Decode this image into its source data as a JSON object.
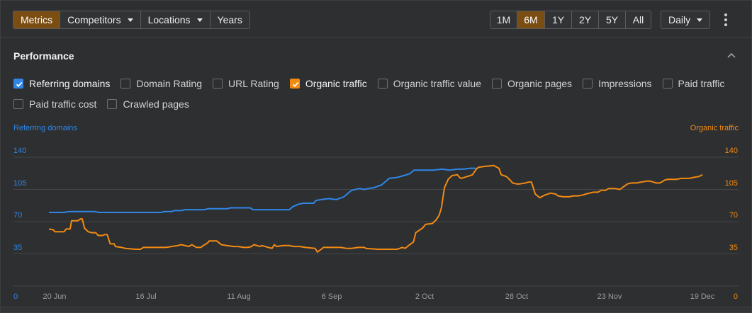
{
  "toolbar": {
    "view_tabs": [
      {
        "label": "Metrics",
        "active": true,
        "dropdown": false
      },
      {
        "label": "Competitors",
        "active": false,
        "dropdown": true
      },
      {
        "label": "Locations",
        "active": false,
        "dropdown": true
      },
      {
        "label": "Years",
        "active": false,
        "dropdown": false
      }
    ],
    "ranges": [
      {
        "label": "1M",
        "active": false
      },
      {
        "label": "6M",
        "active": true
      },
      {
        "label": "1Y",
        "active": false
      },
      {
        "label": "2Y",
        "active": false
      },
      {
        "label": "5Y",
        "active": false
      },
      {
        "label": "All",
        "active": false
      }
    ],
    "interval": "Daily"
  },
  "section": {
    "title": "Performance"
  },
  "metrics": [
    {
      "label": "Referring domains",
      "checked": true,
      "color": "#2f86e6"
    },
    {
      "label": "Domain Rating",
      "checked": false
    },
    {
      "label": "URL Rating",
      "checked": false
    },
    {
      "label": "Organic traffic",
      "checked": true,
      "color": "#f28a12"
    },
    {
      "label": "Organic traffic value",
      "checked": false
    },
    {
      "label": "Organic pages",
      "checked": false
    },
    {
      "label": "Impressions",
      "checked": false
    },
    {
      "label": "Paid traffic",
      "checked": false
    },
    {
      "label": "Paid traffic cost",
      "checked": false
    },
    {
      "label": "Crawled pages",
      "checked": false
    }
  ],
  "colors": {
    "accent": "#7a4d12",
    "blue": "#2f86e6",
    "orange": "#f28a12"
  },
  "chart_data": {
    "type": "line",
    "xlabel_ticks": [
      "20 Jun",
      "16 Jul",
      "11 Aug",
      "6 Sep",
      "2 Oct",
      "28 Oct",
      "23 Nov",
      "19 Dec"
    ],
    "left_axis": {
      "title": "Referring domains",
      "ticks": [
        "0",
        "35",
        "70",
        "105",
        "140"
      ],
      "ylim": [
        0,
        160
      ]
    },
    "right_axis": {
      "title": "Organic traffic",
      "ticks": [
        "0",
        "35",
        "70",
        "105",
        "140"
      ],
      "ylim": [
        0,
        160
      ]
    },
    "grid": true,
    "series": [
      {
        "name": "Referring domains",
        "axis": "left",
        "color": "#2f86e6",
        "points": [
          [
            0,
            80
          ],
          [
            20,
            80
          ],
          [
            27,
            81
          ],
          [
            60,
            81
          ],
          [
            66,
            80
          ],
          [
            148,
            80
          ],
          [
            153,
            81
          ],
          [
            162,
            81
          ],
          [
            166,
            82
          ],
          [
            175,
            82
          ],
          [
            180,
            83
          ],
          [
            206,
            83
          ],
          [
            210,
            84
          ],
          [
            236,
            84
          ],
          [
            240,
            85
          ],
          [
            266,
            85
          ],
          [
            270,
            83
          ],
          [
            318,
            83
          ],
          [
            322,
            86
          ],
          [
            330,
            89
          ],
          [
            336,
            90
          ],
          [
            350,
            90
          ],
          [
            353,
            93
          ],
          [
            360,
            94
          ],
          [
            370,
            95
          ],
          [
            380,
            94
          ],
          [
            390,
            97
          ],
          [
            400,
            104
          ],
          [
            411,
            106
          ],
          [
            416,
            105
          ],
          [
            430,
            107
          ],
          [
            440,
            110
          ],
          [
            450,
            117
          ],
          [
            460,
            118
          ],
          [
            469,
            120
          ],
          [
            477,
            122
          ],
          [
            483,
            126
          ],
          [
            500,
            126
          ],
          [
            508,
            126
          ],
          [
            520,
            127
          ],
          [
            530,
            126
          ],
          [
            540,
            127
          ],
          [
            548,
            127
          ],
          [
            557,
            128
          ],
          [
            565,
            128
          ]
        ]
      },
      {
        "name": "Organic traffic",
        "axis": "right",
        "color": "#f28a12",
        "points": [
          [
            0,
            62
          ],
          [
            6,
            61
          ],
          [
            8,
            59
          ],
          [
            20,
            59
          ],
          [
            23,
            62
          ],
          [
            28,
            62
          ],
          [
            30,
            71
          ],
          [
            38,
            71
          ],
          [
            42,
            73
          ],
          [
            44,
            73
          ],
          [
            47,
            63
          ],
          [
            52,
            59
          ],
          [
            57,
            58
          ],
          [
            62,
            58
          ],
          [
            65,
            55
          ],
          [
            71,
            55
          ],
          [
            74,
            56
          ],
          [
            77,
            56
          ],
          [
            81,
            46
          ],
          [
            86,
            46
          ],
          [
            88,
            43
          ],
          [
            96,
            42
          ],
          [
            101,
            41
          ],
          [
            115,
            40
          ],
          [
            121,
            40
          ],
          [
            125,
            42
          ],
          [
            130,
            42
          ],
          [
            150,
            42
          ],
          [
            155,
            42
          ],
          [
            170,
            44
          ],
          [
            175,
            45
          ],
          [
            180,
            44
          ],
          [
            185,
            43
          ],
          [
            189,
            45
          ],
          [
            195,
            42
          ],
          [
            201,
            42
          ],
          [
            204,
            44
          ],
          [
            210,
            47
          ],
          [
            212,
            49
          ],
          [
            222,
            49
          ],
          [
            228,
            45
          ],
          [
            235,
            44
          ],
          [
            244,
            43
          ],
          [
            250,
            43
          ],
          [
            258,
            42
          ],
          [
            263,
            42
          ],
          [
            268,
            43
          ],
          [
            271,
            45
          ],
          [
            279,
            43
          ],
          [
            282,
            44
          ],
          [
            290,
            42
          ],
          [
            295,
            41
          ],
          [
            298,
            45
          ],
          [
            301,
            43
          ],
          [
            310,
            44
          ],
          [
            318,
            44
          ],
          [
            324,
            43
          ],
          [
            332,
            43
          ],
          [
            339,
            42
          ],
          [
            352,
            41
          ],
          [
            355,
            37
          ],
          [
            360,
            40
          ],
          [
            363,
            42
          ],
          [
            368,
            42
          ],
          [
            386,
            42
          ],
          [
            393,
            41
          ],
          [
            400,
            41
          ],
          [
            409,
            42
          ],
          [
            413,
            42
          ],
          [
            417,
            42
          ],
          [
            419,
            41
          ],
          [
            435,
            40
          ],
          [
            453,
            40
          ],
          [
            460,
            40
          ],
          [
            464,
            41
          ],
          [
            467,
            42
          ],
          [
            471,
            41
          ],
          [
            474,
            43
          ],
          [
            482,
            48
          ],
          [
            485,
            58
          ],
          [
            494,
            63
          ],
          [
            498,
            67
          ],
          [
            507,
            68
          ],
          [
            512,
            72
          ],
          [
            516,
            77
          ],
          [
            519,
            85
          ],
          [
            523,
            107
          ],
          [
            528,
            116
          ],
          [
            533,
            120
          ],
          [
            540,
            121
          ],
          [
            543,
            118
          ],
          [
            545,
            117
          ],
          [
            553,
            119
          ],
          [
            557,
            120
          ],
          [
            560,
            121
          ],
          [
            565,
            127
          ],
          [
            568,
            129
          ],
          [
            576,
            130
          ],
          [
            588,
            131
          ],
          [
            595,
            128
          ],
          [
            598,
            121
          ],
          [
            605,
            119
          ],
          [
            610,
            115
          ],
          [
            613,
            112
          ],
          [
            618,
            111
          ],
          [
            623,
            111
          ],
          [
            630,
            112
          ],
          [
            634,
            113
          ],
          [
            638,
            113
          ],
          [
            643,
            100
          ],
          [
            649,
            96
          ],
          [
            656,
            99
          ],
          [
            660,
            100
          ],
          [
            663,
            101
          ],
          [
            670,
            100
          ],
          [
            673,
            98
          ],
          [
            680,
            97
          ],
          [
            688,
            97
          ],
          [
            693,
            98
          ],
          [
            700,
            98
          ],
          [
            706,
            99
          ],
          [
            710,
            100
          ],
          [
            715,
            101
          ],
          [
            720,
            102
          ],
          [
            726,
            102
          ],
          [
            730,
            104
          ],
          [
            736,
            104
          ],
          [
            740,
            106
          ],
          [
            748,
            106
          ],
          [
            755,
            105
          ],
          [
            760,
            108
          ],
          [
            765,
            111
          ],
          [
            770,
            112
          ],
          [
            777,
            112
          ],
          [
            783,
            113
          ],
          [
            790,
            114
          ],
          [
            795,
            114
          ],
          [
            799,
            113
          ],
          [
            803,
            112
          ],
          [
            808,
            112
          ],
          [
            814,
            115
          ],
          [
            818,
            116
          ],
          [
            824,
            116
          ],
          [
            830,
            116
          ],
          [
            836,
            117
          ],
          [
            840,
            117
          ],
          [
            847,
            117
          ],
          [
            852,
            118
          ],
          [
            859,
            119
          ],
          [
            862,
            120
          ],
          [
            864,
            121
          ]
        ]
      }
    ]
  }
}
